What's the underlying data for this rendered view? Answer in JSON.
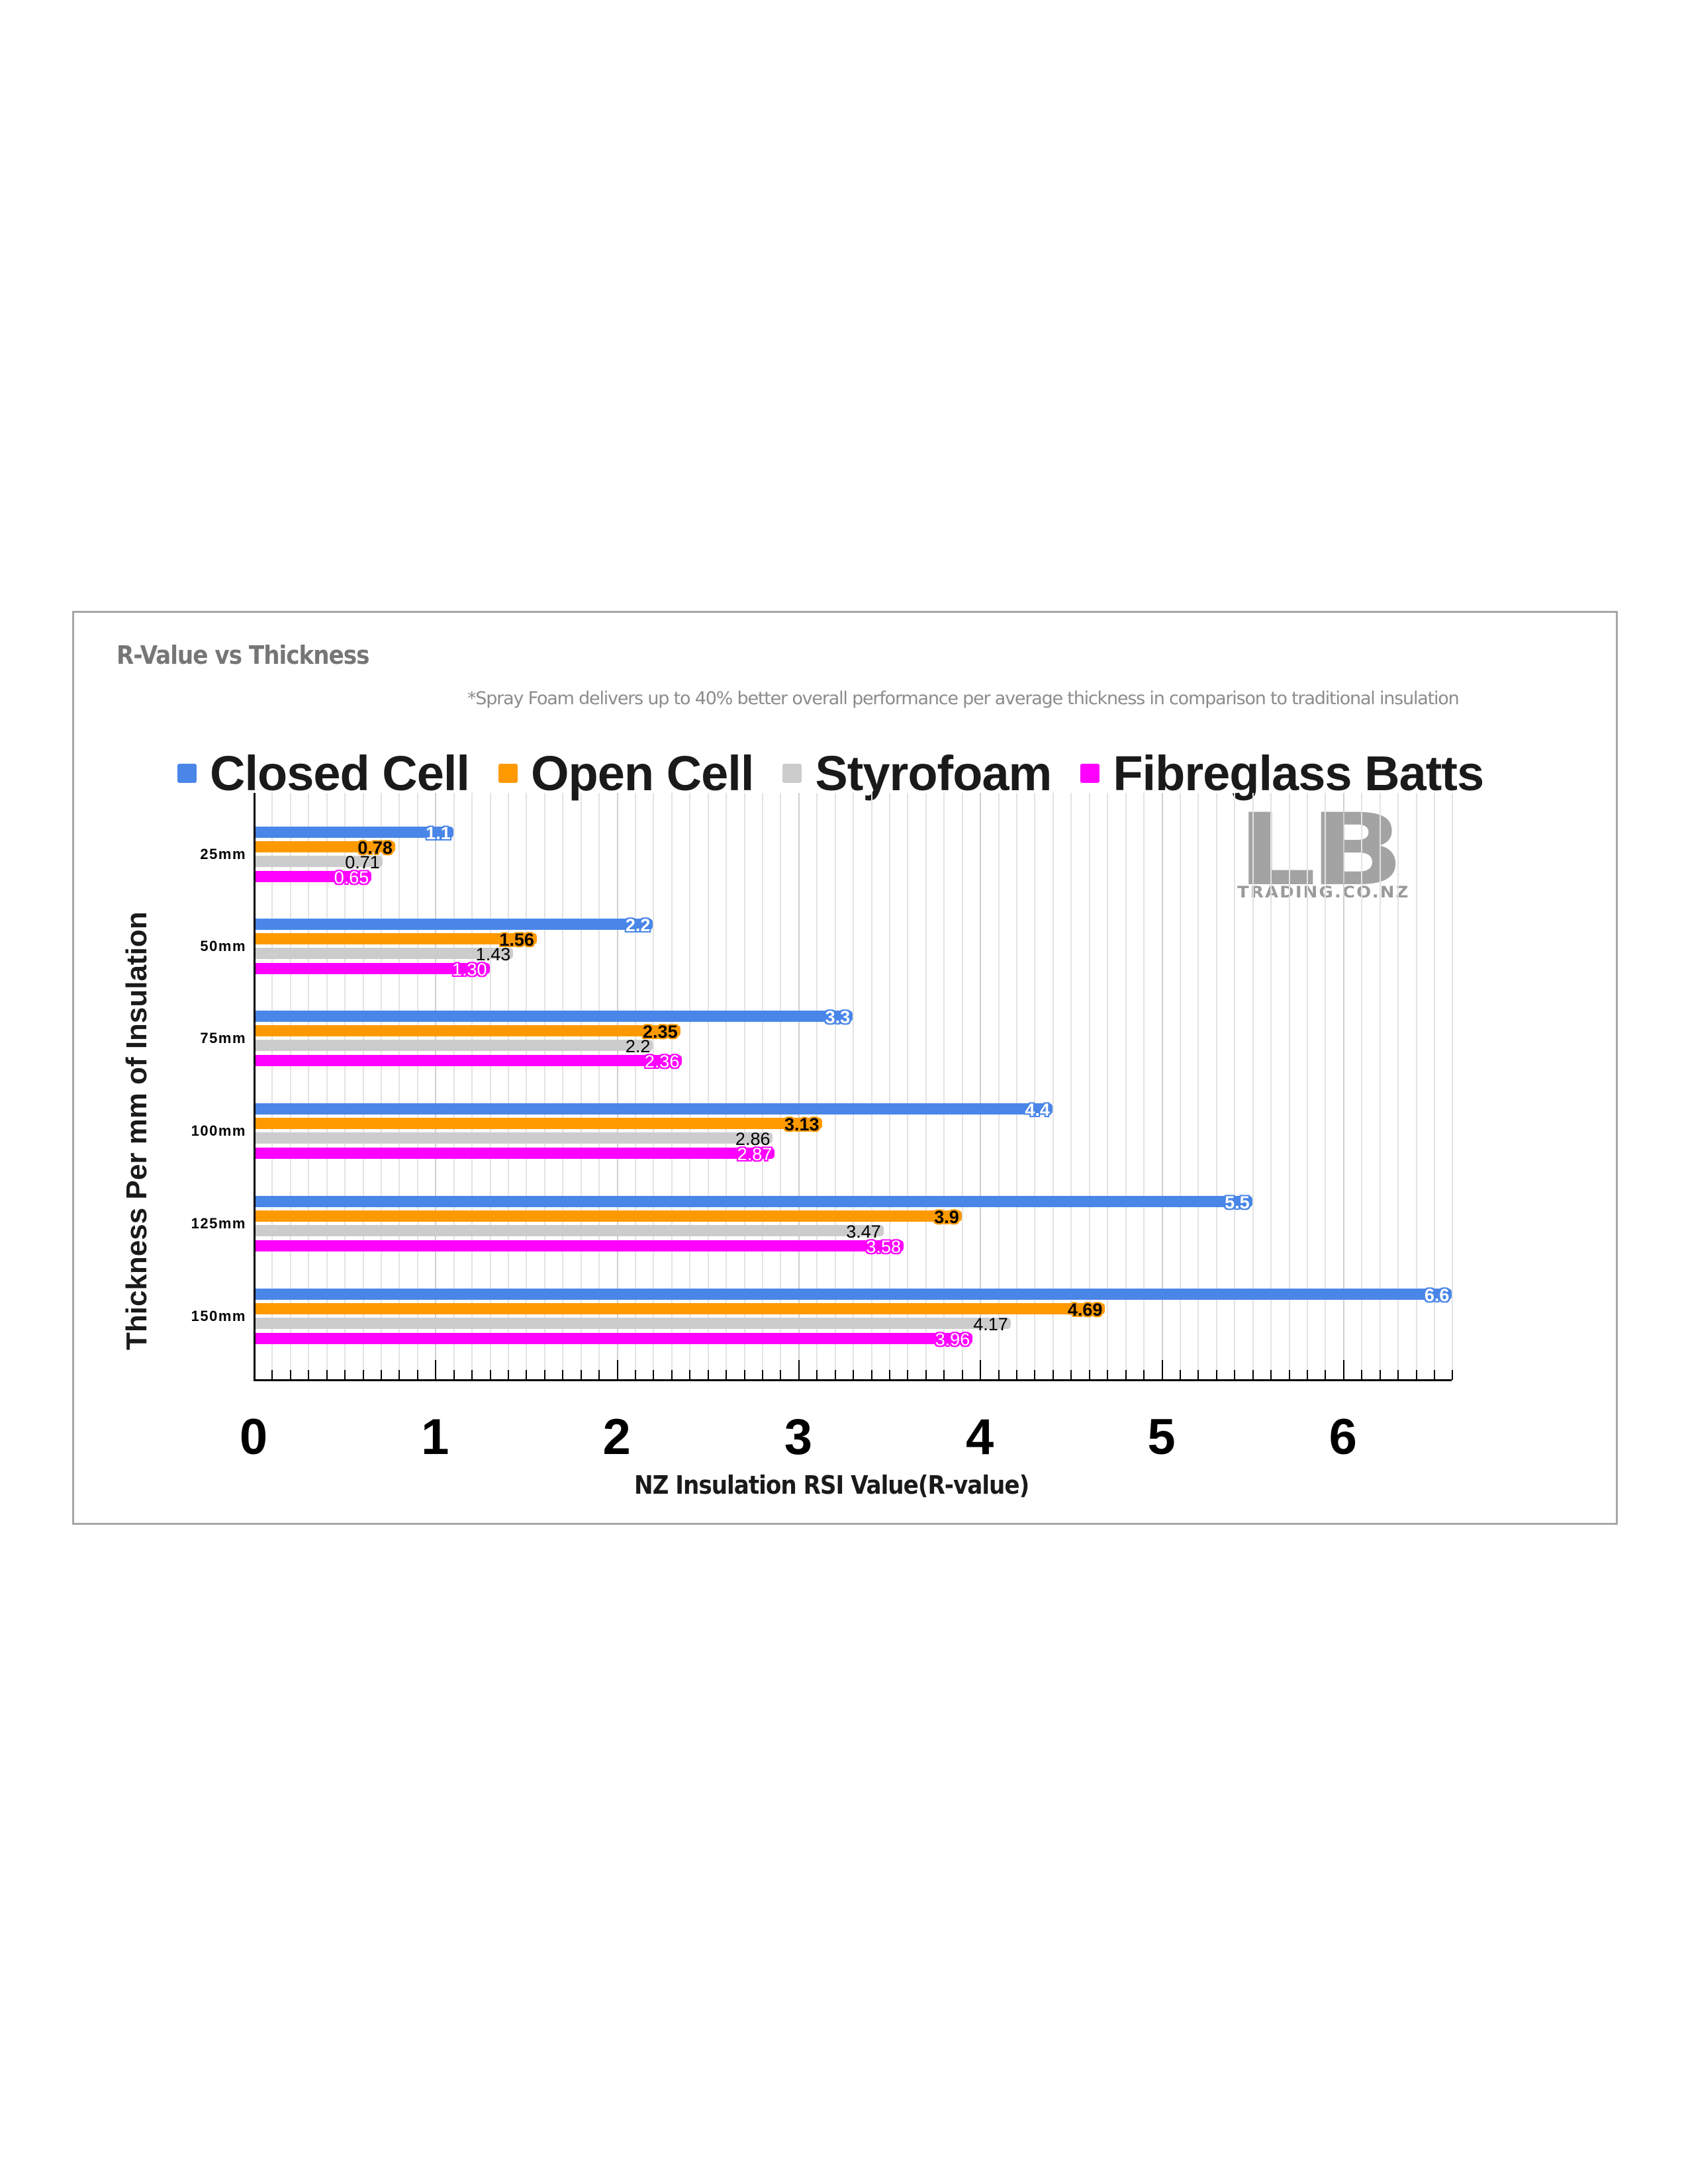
{
  "chart": {
    "title": "R-Value vs Thickness",
    "subtitle": "*Spray Foam delivers up to 40% better overall performance per average thickness in comparison to traditional insulation",
    "x_axis_title": "NZ Insulation RSI Value(R-value)",
    "y_axis_title": "Thickness Per mm of Insulation",
    "x_tick_labels": [
      "0",
      "1",
      "2",
      "3",
      "4",
      "5",
      "6"
    ],
    "legend": [
      {
        "label": "Closed Cell",
        "color": "#4a86e8"
      },
      {
        "label": "Open Cell",
        "color": "#ff9900"
      },
      {
        "label": "Styrofoam",
        "color": "#cccccc"
      },
      {
        "label": "Fibreglass Batts",
        "color": "#ff00ff"
      }
    ],
    "logo": {
      "main": "LB",
      "sub": "TRADING.CO.NZ"
    }
  },
  "chart_data": {
    "type": "bar",
    "orientation": "horizontal",
    "title": "R-Value vs Thickness",
    "subtitle": "*Spray Foam delivers up to 40% better overall performance per average thickness in comparison to traditional insulation",
    "xlabel": "NZ Insulation RSI Value(R-value)",
    "ylabel": "Thickness Per mm of Insulation",
    "categories": [
      "25mm",
      "50mm",
      "75mm",
      "100mm",
      "125mm",
      "150mm"
    ],
    "series": [
      {
        "name": "Closed Cell",
        "color": "#4a86e8",
        "values": [
          1.1,
          2.2,
          3.3,
          4.4,
          5.5,
          6.6
        ],
        "labels": [
          "1.1",
          "2.2",
          "3.3",
          "4.4",
          "5.5",
          "6.6"
        ]
      },
      {
        "name": "Open Cell",
        "color": "#ff9900",
        "values": [
          0.78,
          1.56,
          2.35,
          3.13,
          3.9,
          4.69
        ],
        "labels": [
          "0.78",
          "1.56",
          "2.35",
          "3.13",
          "3.9",
          "4.69"
        ]
      },
      {
        "name": "Styrofoam",
        "color": "#cccccc",
        "values": [
          0.71,
          1.43,
          2.2,
          2.86,
          3.47,
          4.17
        ],
        "labels": [
          "0.71",
          "1.43",
          "2.2",
          "2.86",
          "3.47",
          "4.17"
        ]
      },
      {
        "name": "Fibreglass Batts",
        "color": "#ff00ff",
        "values": [
          0.65,
          1.3,
          2.36,
          2.87,
          3.58,
          3.96
        ],
        "labels": [
          "0.65",
          "1.30",
          "2.36",
          "2.87",
          "3.58",
          "3.96"
        ]
      }
    ],
    "xlim": [
      0,
      6.6
    ],
    "x_ticks": [
      0,
      1,
      2,
      3,
      4,
      5,
      6
    ],
    "minor_tick_step": 0.1,
    "grid": true,
    "legend_position": "top"
  }
}
